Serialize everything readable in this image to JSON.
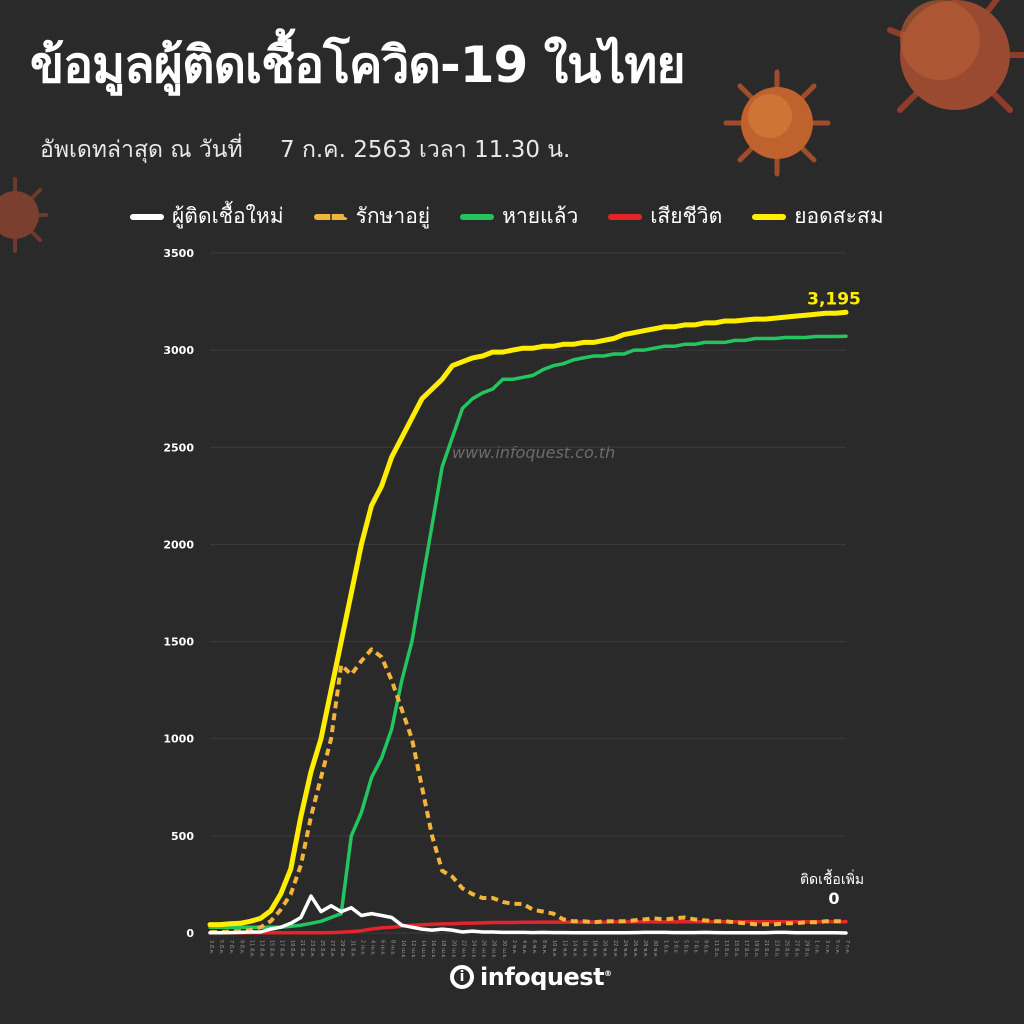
{
  "header": {
    "title": "ข้อมูลผู้ติดเชื้อโควิด-19 ในไทย",
    "update_label": "อัพเดทล่าสุด ณ วันที่",
    "update_value": "7 ก.ค. 2563 เวลา 11.30 น."
  },
  "watermark": "www.infoquest.co.th",
  "logo": {
    "text": "infoquest",
    "mark": "i",
    "reg": "®"
  },
  "colors": {
    "background": "#2b2a2a",
    "new_cases": "#ffffff",
    "active": "#f2b43a",
    "recovered": "#22c55e",
    "deaths": "#e5232b",
    "cumulative": "#ffee00"
  },
  "chart_data": {
    "type": "line",
    "x_ticks": [
      "3 มี.ค.",
      "5 มี.ค.",
      "7 มี.ค.",
      "9 มี.ค.",
      "11 มี.ค.",
      "13 มี.ค.",
      "15 มี.ค.",
      "17 มี.ค.",
      "19 มี.ค.",
      "21 มี.ค.",
      "23 มี.ค.",
      "25 มี.ค.",
      "27 มี.ค.",
      "29 มี.ค.",
      "31 มี.ค.",
      "2 เม.ย.",
      "4 เม.ย.",
      "6 เม.ย.",
      "8 เม.ย.",
      "10 เม.ย.",
      "12 เม.ย.",
      "14 เม.ย.",
      "16 เม.ย.",
      "18 เม.ย.",
      "20 เม.ย.",
      "22 เม.ย.",
      "24 เม.ย.",
      "26 เม.ย.",
      "28 เม.ย.",
      "30 เม.ย.",
      "2 พ.ค.",
      "4 พ.ค.",
      "6 พ.ค.",
      "8 พ.ค.",
      "10 พ.ค.",
      "12 พ.ค.",
      "14 พ.ค.",
      "16 พ.ค.",
      "18 พ.ค.",
      "20 พ.ค.",
      "22 พ.ค.",
      "24 พ.ค.",
      "26 พ.ค.",
      "28 พ.ค.",
      "30 พ.ค.",
      "1 มิ.ย.",
      "3 มิ.ย.",
      "5 มิ.ย.",
      "7 มิ.ย.",
      "9 มิ.ย.",
      "11 มิ.ย.",
      "13 มิ.ย.",
      "15 มิ.ย.",
      "17 มิ.ย.",
      "19 มิ.ย.",
      "21 มิ.ย.",
      "23 มิ.ย.",
      "25 มิ.ย.",
      "27 มิ.ย.",
      "29 มิ.ย.",
      "1 ก.ค.",
      "3 ก.ค.",
      "5 ก.ค.",
      "7 ก.ค."
    ],
    "ylim": [
      0,
      3500
    ],
    "y_ticks": [
      0,
      500,
      1000,
      1500,
      2000,
      2500,
      3000,
      3500
    ],
    "grid": true,
    "legend_position": "top",
    "series": [
      {
        "key": "new_cases",
        "name": "ผู้ติดเชื้อใหม่",
        "style": "solid",
        "values": [
          1,
          1,
          2,
          3,
          5,
          5,
          20,
          30,
          50,
          80,
          190,
          110,
          140,
          110,
          130,
          90,
          100,
          90,
          80,
          40,
          30,
          20,
          15,
          20,
          15,
          5,
          10,
          5,
          5,
          3,
          3,
          3,
          2,
          3,
          2,
          2,
          1,
          1,
          1,
          1,
          1,
          1,
          2,
          3,
          3,
          3,
          2,
          2,
          2,
          3,
          2,
          1,
          1,
          1,
          1,
          1,
          3,
          3,
          1,
          1,
          1,
          1,
          1,
          0
        ]
      },
      {
        "key": "active",
        "name": "รักษาอยู่",
        "style": "dashed",
        "values": [
          5,
          5,
          8,
          10,
          15,
          30,
          60,
          120,
          200,
          350,
          600,
          800,
          1000,
          1380,
          1330,
          1400,
          1460,
          1420,
          1300,
          1150,
          1000,
          750,
          500,
          320,
          290,
          230,
          200,
          180,
          180,
          160,
          150,
          150,
          120,
          110,
          100,
          70,
          60,
          60,
          55,
          60,
          60,
          60,
          65,
          70,
          75,
          70,
          75,
          80,
          70,
          65,
          60,
          60,
          55,
          50,
          45,
          45,
          45,
          50,
          50,
          55,
          55,
          60,
          60,
          60
        ]
      },
      {
        "key": "recovered",
        "name": "หายแล้ว",
        "style": "solid",
        "values": [
          30,
          30,
          30,
          30,
          30,
          30,
          30,
          30,
          35,
          40,
          50,
          60,
          80,
          100,
          500,
          620,
          800,
          900,
          1050,
          1300,
          1500,
          1800,
          2100,
          2400,
          2550,
          2700,
          2750,
          2780,
          2800,
          2850,
          2850,
          2860,
          2870,
          2900,
          2920,
          2930,
          2950,
          2960,
          2970,
          2970,
          2980,
          2980,
          3000,
          3000,
          3010,
          3020,
          3020,
          3030,
          3030,
          3040,
          3040,
          3040,
          3050,
          3050,
          3060,
          3060,
          3060,
          3065,
          3065,
          3065,
          3070,
          3070,
          3070,
          3072
        ]
      },
      {
        "key": "deaths",
        "name": "เสียชีวิต",
        "style": "solid",
        "values": [
          1,
          1,
          1,
          1,
          1,
          1,
          1,
          1,
          1,
          1,
          1,
          1,
          2,
          4,
          7,
          12,
          20,
          26,
          30,
          35,
          40,
          42,
          45,
          47,
          48,
          50,
          51,
          52,
          54,
          54,
          54,
          55,
          55,
          56,
          56,
          56,
          56,
          56,
          56,
          56,
          57,
          57,
          57,
          57,
          57,
          57,
          57,
          58,
          58,
          58,
          58,
          58,
          58,
          58,
          58,
          58,
          58,
          58,
          58,
          58,
          58,
          58,
          58,
          58
        ]
      },
      {
        "key": "cumulative",
        "name": "ยอดสะสม",
        "style": "solid",
        "values": [
          43,
          43,
          48,
          50,
          60,
          75,
          114,
          200,
          330,
          600,
          830,
          1000,
          1250,
          1500,
          1750,
          2000,
          2200,
          2300,
          2450,
          2550,
          2650,
          2750,
          2800,
          2850,
          2920,
          2940,
          2960,
          2970,
          2990,
          2990,
          3000,
          3010,
          3010,
          3020,
          3020,
          3030,
          3030,
          3040,
          3040,
          3050,
          3060,
          3080,
          3090,
          3100,
          3110,
          3120,
          3120,
          3130,
          3130,
          3140,
          3140,
          3150,
          3150,
          3155,
          3160,
          3160,
          3165,
          3170,
          3175,
          3180,
          3185,
          3190,
          3190,
          3195
        ]
      }
    ],
    "annotations": [
      {
        "series": "cumulative",
        "text": "3,195"
      },
      {
        "series": "new_cases",
        "label": "ติดเชื้อเพิ่ม",
        "text": "0"
      }
    ]
  }
}
